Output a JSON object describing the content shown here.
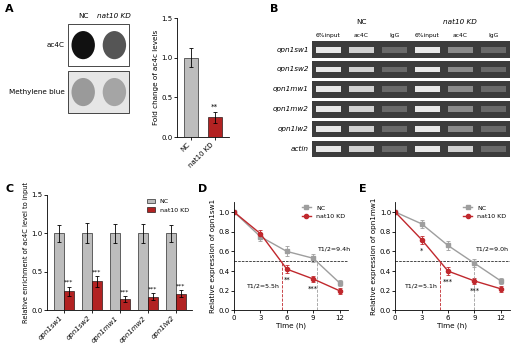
{
  "panel_labels": [
    "A",
    "B",
    "C",
    "D",
    "E"
  ],
  "dot_blot": {
    "columns": [
      "NC",
      "nat10 KD"
    ],
    "rows": [
      "ac4C",
      "Methylene blue"
    ]
  },
  "gel": {
    "groups": [
      "NC",
      "nat10 KD"
    ],
    "lanes": [
      "6%input",
      "ac4C",
      "IgG"
    ],
    "rows": [
      "opn1sw1",
      "opn1sw2",
      "opn1mw1",
      "opn1mw2",
      "opn1lw2",
      "actin"
    ]
  },
  "chart_data": [
    {
      "type": "bar",
      "ylabel": "Fold change of ac4c levels",
      "categories": [
        "NC",
        "nat10 KD"
      ],
      "values": [
        1.0,
        0.25
      ],
      "errors": [
        0.12,
        0.07
      ],
      "colors": [
        "#bdbdbd",
        "#b22222"
      ],
      "annotations": [
        {
          "category": "nat10 KD",
          "label": "**"
        }
      ],
      "ylim": [
        0,
        1.5
      ],
      "yticks": [
        {
          "value": 0,
          "label": "0.0"
        },
        {
          "value": 0.5,
          "label": "0.5"
        },
        {
          "value": 1.0,
          "label": "1.0"
        },
        {
          "value": 1.5,
          "label": "1.5"
        }
      ]
    },
    {
      "type": "grouped_bar",
      "ylabel": "Relative enrichment of ac4C level to input",
      "categories": [
        "opn1sw1",
        "opn1sw2",
        "opn1mw1",
        "opn1mw2",
        "opn1lw2"
      ],
      "series": [
        {
          "name": "NC",
          "color": "#bdbdbd",
          "values": [
            1.0,
            1.0,
            1.0,
            1.0,
            1.0
          ],
          "errors": [
            0.11,
            0.13,
            0.12,
            0.12,
            0.11
          ]
        },
        {
          "name": "nat10 KD",
          "color": "#b22222",
          "values": [
            0.25,
            0.38,
            0.15,
            0.18,
            0.22
          ],
          "errors": [
            0.06,
            0.07,
            0.04,
            0.05,
            0.05
          ],
          "significance": [
            "***",
            "***",
            "***",
            "***",
            "***"
          ]
        }
      ],
      "legend": "upper right",
      "ylim": [
        0,
        1.5
      ],
      "yticks": [
        {
          "value": 0,
          "label": "0.0"
        },
        {
          "value": 0.5,
          "label": "0.5"
        },
        {
          "value": 1.0,
          "label": "1.0"
        },
        {
          "value": 1.5,
          "label": "1.5"
        }
      ]
    },
    {
      "type": "line",
      "xlabel": "Time (h)",
      "ylabel": "Relative expression of opn1sw1",
      "x": [
        0,
        3,
        6,
        9,
        12
      ],
      "series": [
        {
          "name": "NC",
          "color": "#9e9e9e",
          "marker": "square",
          "values": [
            1.0,
            0.75,
            0.6,
            0.53,
            0.28
          ],
          "errors": [
            0.0,
            0.04,
            0.05,
            0.04,
            0.03
          ]
        },
        {
          "name": "nat10 KD",
          "color": "#c0282d",
          "marker": "circle",
          "values": [
            1.0,
            0.78,
            0.42,
            0.32,
            0.2
          ],
          "errors": [
            0.0,
            0.04,
            0.04,
            0.03,
            0.03
          ]
        }
      ],
      "significance": [
        {
          "x": 6,
          "label": "**"
        },
        {
          "x": 9,
          "label": "***"
        }
      ],
      "reference_line": 0.5,
      "half_lives": [
        {
          "series": "nat10 KD",
          "value": 5.5,
          "label": "T1/2=5.5h"
        },
        {
          "series": "NC",
          "value": 9.4,
          "label": "T1/2=9.4h"
        }
      ],
      "legend": "upper right",
      "xlim": [
        0,
        13
      ],
      "xticks": [
        0,
        3,
        6,
        9,
        12
      ],
      "ylim": [
        0,
        1.1
      ],
      "yticks": [
        {
          "value": 0,
          "label": "0.0"
        },
        {
          "value": 0.2,
          "label": "0.2"
        },
        {
          "value": 0.4,
          "label": "0.4"
        },
        {
          "value": 0.6,
          "label": "0.6"
        },
        {
          "value": 0.8,
          "label": "0.8"
        },
        {
          "value": 1.0,
          "label": "1.0"
        }
      ]
    },
    {
      "type": "line",
      "xlabel": "Time (h)",
      "ylabel": "Relative expression of opn1mw1",
      "x": [
        0,
        3,
        6,
        9,
        12
      ],
      "series": [
        {
          "name": "NC",
          "color": "#9e9e9e",
          "marker": "square",
          "values": [
            1.0,
            0.88,
            0.66,
            0.48,
            0.3
          ],
          "errors": [
            0.0,
            0.04,
            0.05,
            0.04,
            0.03
          ]
        },
        {
          "name": "nat10 KD",
          "color": "#c0282d",
          "marker": "circle",
          "values": [
            1.0,
            0.72,
            0.4,
            0.3,
            0.22
          ],
          "errors": [
            0.0,
            0.04,
            0.04,
            0.03,
            0.03
          ]
        }
      ],
      "significance": [
        {
          "x": 3,
          "label": "*"
        },
        {
          "x": 6,
          "label": "***"
        },
        {
          "x": 9,
          "label": "***"
        }
      ],
      "reference_line": 0.5,
      "half_lives": [
        {
          "series": "nat10 KD",
          "value": 5.1,
          "label": "T1/2=5.1h"
        },
        {
          "series": "NC",
          "value": 9.0,
          "label": "T1/2=9.0h"
        }
      ],
      "legend": "upper right",
      "xlim": [
        0,
        13
      ],
      "xticks": [
        0,
        3,
        6,
        9,
        12
      ],
      "ylim": [
        0,
        1.1
      ],
      "yticks": [
        {
          "value": 0,
          "label": "0.0"
        },
        {
          "value": 0.2,
          "label": "0.2"
        },
        {
          "value": 0.4,
          "label": "0.4"
        },
        {
          "value": 0.6,
          "label": "0.6"
        },
        {
          "value": 0.8,
          "label": "0.8"
        },
        {
          "value": 1.0,
          "label": "1.0"
        }
      ]
    }
  ]
}
